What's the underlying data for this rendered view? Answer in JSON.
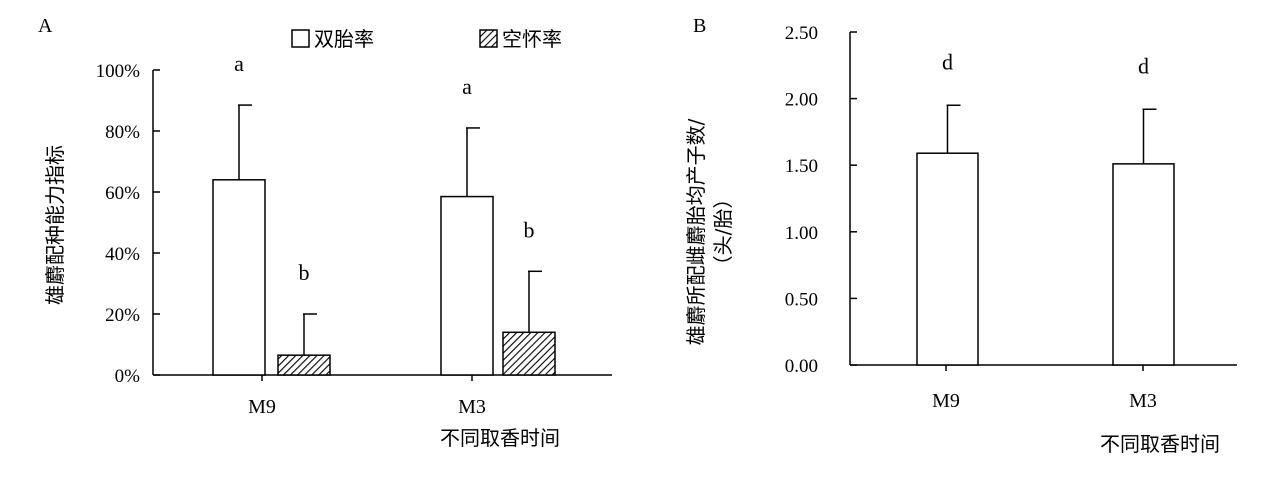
{
  "chart_data": [
    {
      "panel_label": "A",
      "type": "bar",
      "categories": [
        "M9",
        "M3"
      ],
      "series": [
        {
          "name": "双胎率",
          "values": [
            64,
            58.5
          ],
          "errors": [
            24.5,
            22.5
          ],
          "pattern": "empty"
        },
        {
          "name": "空怀率",
          "values": [
            6.5,
            14
          ],
          "errors": [
            13.5,
            20
          ],
          "pattern": "hatched"
        }
      ],
      "significance": [
        [
          "a",
          "b"
        ],
        [
          "a",
          "b"
        ]
      ],
      "ylabel": "雄麝配种能力指标",
      "xlabel": "不同取香时间",
      "ylim": [
        0,
        100
      ],
      "yticks": [
        "0%",
        "20%",
        "40%",
        "60%",
        "80%",
        "100%"
      ],
      "legend": "top",
      "grid": false
    },
    {
      "panel_label": "B",
      "type": "bar",
      "categories": [
        "M9",
        "M3"
      ],
      "series": [
        {
          "values": [
            1.59,
            1.51
          ],
          "errors": [
            0.36,
            0.41
          ],
          "pattern": "empty"
        }
      ],
      "significance": [
        [
          "d"
        ],
        [
          "d"
        ]
      ],
      "ylabel": "雄麝所配雌麝胎均产子数/",
      "ylabel2": "（头/胎）",
      "xlabel": "不同取香时间",
      "ylim": [
        0,
        2.5
      ],
      "yticks": [
        "0.00",
        "0.50",
        "1.00",
        "1.50",
        "2.00",
        "2.50"
      ],
      "grid": false
    }
  ]
}
